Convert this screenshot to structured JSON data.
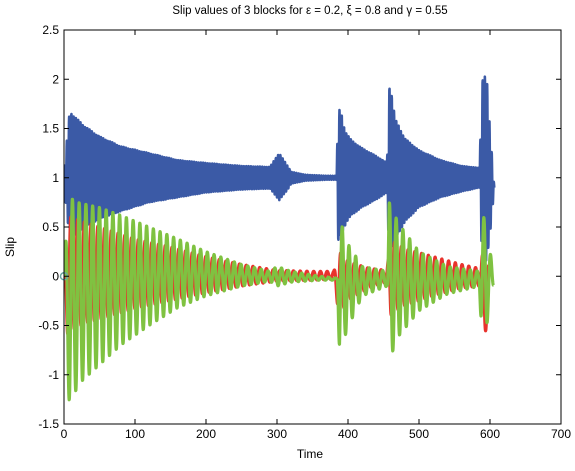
{
  "chart_data": {
    "type": "line",
    "title": "Slip values of 3 blocks for ε = 0.2, ξ = 0.8 and γ = 0.55",
    "xlabel": "Time",
    "ylabel": "Slip",
    "xlim": [
      0,
      700
    ],
    "ylim": [
      -1.5,
      2.5
    ],
    "xticks": [
      0,
      100,
      200,
      300,
      400,
      500,
      600,
      700
    ],
    "yticks": [
      -1.5,
      -1,
      -0.5,
      0,
      0.5,
      1,
      1.5,
      2,
      2.5
    ],
    "grid": false,
    "legend": "none",
    "colors": {
      "block1": "#3b5aa6",
      "block2": "#e8322c",
      "block3": "#7fc241",
      "marker": "#6aa7a0"
    },
    "initial_marker": {
      "x": 0,
      "y": 0
    },
    "series": [
      {
        "key": "block1",
        "upper_envelope": {
          "x": [
            0,
            3,
            8,
            15,
            30,
            50,
            80,
            120,
            160,
            200,
            250,
            290,
            300,
            303,
            315,
            320,
            340,
            370,
            384,
            386,
            389,
            392,
            395,
            398,
            405,
            420,
            440,
            455,
            458,
            460,
            463,
            466,
            470,
            480,
            500,
            530,
            560,
            585,
            590,
            592,
            596,
            599,
            603,
            606
          ],
          "y": [
            1.05,
            1.3,
            1.68,
            1.62,
            1.52,
            1.42,
            1.32,
            1.25,
            1.18,
            1.15,
            1.12,
            1.11,
            1.22,
            1.25,
            1.12,
            1.06,
            1.03,
            1.02,
            1.02,
            1.72,
            1.67,
            1.62,
            1.5,
            1.45,
            1.38,
            1.3,
            1.22,
            1.15,
            1.93,
            1.89,
            1.8,
            1.6,
            1.55,
            1.4,
            1.28,
            1.18,
            1.12,
            1.1,
            2.08,
            2.05,
            1.95,
            1.6,
            1.2,
            0.9
          ]
        },
        "lower_envelope": {
          "x": [
            0,
            3,
            8,
            15,
            30,
            50,
            80,
            120,
            160,
            200,
            250,
            290,
            300,
            303,
            315,
            320,
            340,
            370,
            384,
            386,
            389,
            392,
            395,
            398,
            405,
            420,
            440,
            455,
            458,
            460,
            463,
            466,
            470,
            480,
            500,
            530,
            560,
            585,
            590,
            592,
            596,
            599,
            603,
            606
          ],
          "y": [
            0.95,
            0.7,
            0.37,
            0.42,
            0.5,
            0.58,
            0.66,
            0.75,
            0.8,
            0.85,
            0.88,
            0.89,
            0.8,
            0.77,
            0.88,
            0.94,
            0.97,
            0.98,
            0.98,
            0.35,
            0.4,
            0.45,
            0.5,
            0.55,
            0.62,
            0.7,
            0.78,
            0.85,
            0.2,
            0.25,
            0.3,
            0.35,
            0.42,
            0.55,
            0.7,
            0.8,
            0.86,
            0.9,
            0.0,
            0.05,
            0.2,
            0.35,
            0.65,
            0.9
          ]
        }
      },
      {
        "key": "block2",
        "upper_envelope": {
          "x": [
            0,
            5,
            10,
            30,
            60,
            100,
            150,
            200,
            250,
            300,
            350,
            380,
            388,
            392,
            400,
            430,
            455,
            460,
            465,
            480,
            520,
            560,
            585,
            592,
            596,
            600
          ],
          "y": [
            0.2,
            0.62,
            0.6,
            0.55,
            0.48,
            0.38,
            0.3,
            0.2,
            0.12,
            0.06,
            0.05,
            0.05,
            0.25,
            0.22,
            0.15,
            0.08,
            0.06,
            0.4,
            0.35,
            0.28,
            0.2,
            0.12,
            0.08,
            0.3,
            0.25,
            0.0
          ]
        },
        "lower_envelope": {
          "x": [
            0,
            5,
            10,
            30,
            60,
            100,
            150,
            200,
            250,
            300,
            350,
            380,
            388,
            392,
            400,
            430,
            455,
            460,
            465,
            480,
            520,
            560,
            585,
            592,
            596,
            600
          ],
          "y": [
            -0.2,
            -0.58,
            -0.55,
            -0.48,
            -0.42,
            -0.33,
            -0.25,
            -0.17,
            -0.1,
            -0.05,
            -0.04,
            -0.03,
            -0.42,
            -0.35,
            -0.25,
            -0.12,
            -0.06,
            -0.4,
            -0.36,
            -0.3,
            -0.2,
            -0.12,
            -0.1,
            -0.6,
            -0.5,
            0.0
          ]
        }
      },
      {
        "key": "block3",
        "upper_envelope": {
          "x": [
            0,
            3,
            8,
            20,
            50,
            80,
            120,
            160,
            200,
            250,
            290,
            300,
            320,
            360,
            385,
            388,
            392,
            398,
            420,
            455,
            458,
            462,
            470,
            500,
            540,
            585,
            589,
            593,
            598,
            605
          ],
          "y": [
            0.1,
            0.4,
            0.8,
            0.75,
            0.7,
            0.62,
            0.5,
            0.38,
            0.25,
            0.12,
            0.05,
            0.1,
            0.05,
            0.0,
            -0.02,
            0.55,
            0.5,
            0.35,
            0.1,
            0.05,
            0.75,
            0.7,
            0.55,
            0.25,
            0.1,
            0.05,
            0.62,
            0.58,
            0.3,
            0.1
          ]
        },
        "lower_envelope": {
          "x": [
            0,
            3,
            8,
            20,
            50,
            80,
            120,
            160,
            200,
            250,
            290,
            300,
            320,
            360,
            385,
            388,
            392,
            398,
            420,
            455,
            458,
            462,
            470,
            500,
            540,
            585,
            589,
            593,
            598,
            605
          ],
          "y": [
            -0.1,
            -0.9,
            -1.32,
            -1.1,
            -0.9,
            -0.7,
            -0.5,
            -0.32,
            -0.2,
            -0.1,
            -0.05,
            -0.1,
            -0.06,
            -0.04,
            -0.04,
            -0.8,
            -0.72,
            -0.55,
            -0.2,
            -0.1,
            -0.82,
            -0.78,
            -0.62,
            -0.35,
            -0.18,
            -0.1,
            -0.7,
            -0.65,
            -0.35,
            -0.1
          ]
        }
      }
    ]
  }
}
